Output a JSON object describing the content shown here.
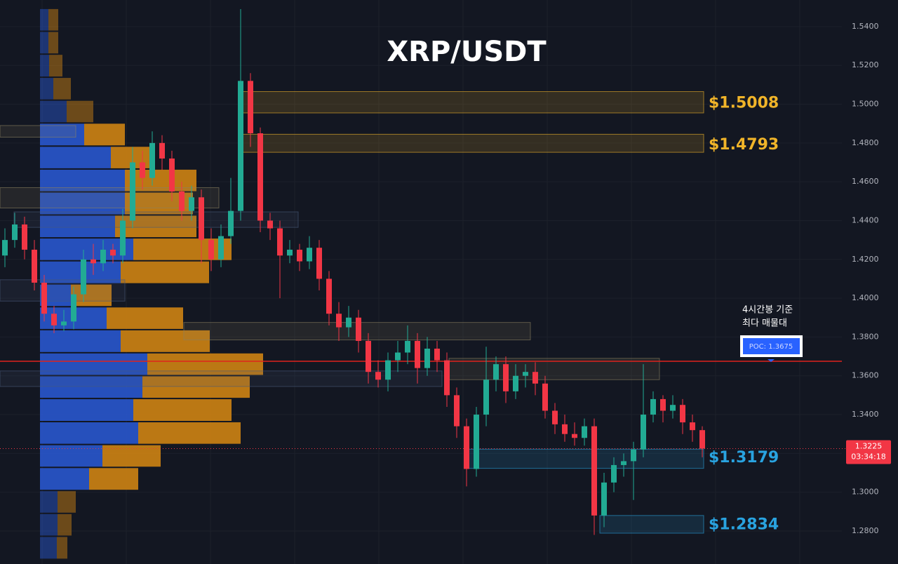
{
  "chart_data": {
    "type": "candlestick",
    "title": "XRP/USDT",
    "ylim": [
      1.263,
      1.5537
    ],
    "yticks": [
      {
        "value": 1.28,
        "label": "1.2800"
      },
      {
        "value": 1.3,
        "label": "1.3000"
      },
      {
        "value": 1.32,
        "label": "1.3200"
      },
      {
        "value": 1.34,
        "label": "1.3400"
      },
      {
        "value": 1.36,
        "label": "1.3600"
      },
      {
        "value": 1.38,
        "label": "1.3800"
      },
      {
        "value": 1.4,
        "label": "1.4000"
      },
      {
        "value": 1.42,
        "label": "1.4200"
      },
      {
        "value": 1.44,
        "label": "1.4400"
      },
      {
        "value": 1.46,
        "label": "1.4600"
      },
      {
        "value": 1.48,
        "label": "1.4800"
      },
      {
        "value": 1.5,
        "label": "1.5000"
      },
      {
        "value": 1.52,
        "label": "1.5200"
      },
      {
        "value": 1.54,
        "label": "1.5400"
      }
    ],
    "grid": true,
    "up_color": "#22ab94",
    "down_color": "#f23645",
    "open": [
      1.422,
      1.43,
      1.438,
      1.425,
      1.408,
      1.392,
      1.386,
      1.388,
      1.402,
      1.42,
      1.418,
      1.425,
      1.422,
      1.44,
      1.47,
      1.462,
      1.48,
      1.472,
      1.455,
      1.445,
      1.452,
      1.43,
      1.42,
      1.432,
      1.445,
      1.512,
      1.485,
      1.44,
      1.436,
      1.422,
      1.425,
      1.419,
      1.426,
      1.41,
      1.392,
      1.385,
      1.39,
      1.378,
      1.362,
      1.358,
      1.368,
      1.372,
      1.378,
      1.364,
      1.374,
      1.368,
      1.35,
      1.334,
      1.312,
      1.34,
      1.358,
      1.366,
      1.352,
      1.36,
      1.362,
      1.356,
      1.342,
      1.335,
      1.33,
      1.328,
      1.334,
      1.288,
      1.305,
      1.314,
      1.316,
      1.322,
      1.34,
      1.348,
      1.342,
      1.345,
      1.336,
      1.332
    ],
    "high": [
      1.436,
      1.444,
      1.442,
      1.43,
      1.412,
      1.396,
      1.394,
      1.406,
      1.425,
      1.428,
      1.43,
      1.428,
      1.446,
      1.478,
      1.476,
      1.486,
      1.484,
      1.476,
      1.46,
      1.458,
      1.456,
      1.436,
      1.438,
      1.462,
      1.549,
      1.516,
      1.488,
      1.444,
      1.44,
      1.43,
      1.428,
      1.432,
      1.43,
      1.414,
      1.398,
      1.396,
      1.394,
      1.382,
      1.368,
      1.372,
      1.378,
      1.386,
      1.382,
      1.38,
      1.378,
      1.372,
      1.354,
      1.338,
      1.344,
      1.375,
      1.37,
      1.37,
      1.366,
      1.366,
      1.367,
      1.36,
      1.346,
      1.34,
      1.336,
      1.338,
      1.338,
      1.31,
      1.318,
      1.32,
      1.326,
      1.366,
      1.352,
      1.35,
      1.35,
      1.348,
      1.34,
      1.334
    ],
    "low": [
      1.416,
      1.426,
      1.42,
      1.404,
      1.388,
      1.382,
      1.383,
      1.384,
      1.398,
      1.412,
      1.414,
      1.418,
      1.418,
      1.436,
      1.456,
      1.458,
      1.466,
      1.45,
      1.44,
      1.44,
      1.418,
      1.414,
      1.416,
      1.428,
      1.44,
      1.478,
      1.434,
      1.43,
      1.4,
      1.418,
      1.414,
      1.415,
      1.404,
      1.386,
      1.378,
      1.38,
      1.372,
      1.356,
      1.354,
      1.352,
      1.362,
      1.366,
      1.356,
      1.36,
      1.362,
      1.344,
      1.328,
      1.303,
      1.308,
      1.334,
      1.352,
      1.346,
      1.348,
      1.354,
      1.35,
      1.338,
      1.33,
      1.326,
      1.324,
      1.324,
      1.278,
      1.282,
      1.3,
      1.308,
      1.296,
      1.318,
      1.336,
      1.336,
      1.338,
      1.33,
      1.326,
      1.318
    ],
    "close": [
      1.43,
      1.438,
      1.425,
      1.408,
      1.392,
      1.386,
      1.388,
      1.402,
      1.42,
      1.418,
      1.425,
      1.422,
      1.44,
      1.47,
      1.462,
      1.48,
      1.472,
      1.455,
      1.445,
      1.452,
      1.43,
      1.42,
      1.432,
      1.445,
      1.512,
      1.485,
      1.44,
      1.436,
      1.422,
      1.425,
      1.419,
      1.426,
      1.41,
      1.392,
      1.385,
      1.39,
      1.378,
      1.362,
      1.358,
      1.368,
      1.372,
      1.378,
      1.364,
      1.374,
      1.368,
      1.35,
      1.334,
      1.312,
      1.34,
      1.358,
      1.366,
      1.352,
      1.36,
      1.362,
      1.356,
      1.342,
      1.335,
      1.33,
      1.328,
      1.334,
      1.288,
      1.305,
      1.314,
      1.316,
      1.322,
      1.34,
      1.348,
      1.342,
      1.345,
      1.336,
      1.332,
      1.3225
    ],
    "volume_profile": {
      "bins": [
        1.5494,
        1.5376,
        1.5258,
        1.5139,
        1.5021,
        1.4903,
        1.4784,
        1.4666,
        1.4548,
        1.4429,
        1.4311,
        1.4193,
        1.4074,
        1.3956,
        1.3838,
        1.3719,
        1.3601,
        1.3483,
        1.3364,
        1.3246,
        1.3128,
        1.3009,
        1.2891,
        1.2773,
        1.2654
      ],
      "buy": [
        12,
        12,
        13,
        19,
        38,
        63,
        101,
        121,
        121,
        107,
        133,
        115,
        44,
        95,
        115,
        153,
        146,
        133,
        140,
        89,
        70,
        25,
        25,
        24
      ],
      "sell": [
        14,
        14,
        19,
        25,
        38,
        58,
        55,
        102,
        97,
        116,
        140,
        126,
        58,
        109,
        127,
        165,
        153,
        140,
        146,
        83,
        70,
        26,
        20,
        15
      ],
      "buy_color": "#2a5bd7",
      "sell_color": "#d98a12"
    },
    "zones": [
      {
        "low": 1.4955,
        "high": 1.5065,
        "price": 1.5008,
        "label": "$1.5008",
        "color": "#f0b429"
      },
      {
        "low": 1.4752,
        "high": 1.4845,
        "price": 1.4793,
        "label": "$1.4793",
        "color": "#f0b429"
      },
      {
        "low": 1.3123,
        "high": 1.3222,
        "price": 1.3179,
        "label": "$1.3179",
        "color": "#29a3e0"
      },
      {
        "low": 1.2789,
        "high": 1.288,
        "price": 1.2834,
        "label": "$1.2834",
        "color": "#29a3e0"
      },
      {
        "low": 1.483,
        "high": 1.489,
        "color": "#8a8060"
      },
      {
        "low": 1.4465,
        "high": 1.457,
        "color": "#8a8060"
      },
      {
        "low": 1.4365,
        "high": 1.4445,
        "color": "#4a5a7a"
      },
      {
        "low": 1.3985,
        "high": 1.4095,
        "color": "#4a5a7a"
      },
      {
        "low": 1.3785,
        "high": 1.3875,
        "color": "#8a8060"
      },
      {
        "low": 1.3545,
        "high": 1.3625,
        "color": "#4a5a7a"
      },
      {
        "low": 1.358,
        "high": 1.369,
        "color": "#8a8060"
      }
    ],
    "poc": {
      "value": 1.3675,
      "label": "POC: 1.3675",
      "color": "#e0221c"
    },
    "annotation": [
      "4시간봉 기준",
      "최다 매물대"
    ],
    "last_price": 1.3225,
    "countdown": "03:34:18"
  }
}
